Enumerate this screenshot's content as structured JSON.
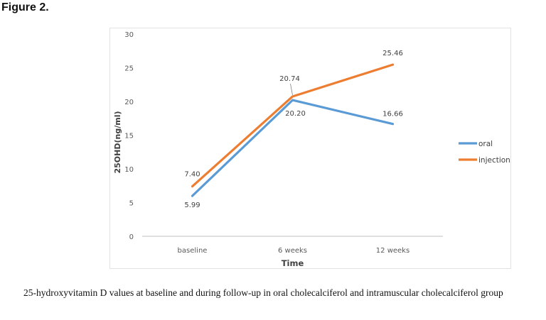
{
  "figure_label": "Figure 2.",
  "caption": "25-hydroxyvitamin D values at baseline and during follow-up in oral cholecalciferol and intramuscular cholecalciferol group",
  "chart_data": {
    "type": "line",
    "xlabel": "Time",
    "ylabel": "25OHD(ng/ml)",
    "categories": [
      "baseline",
      "6 weeks",
      "12 weeks"
    ],
    "ylim": [
      0,
      30
    ],
    "yticks": [
      0,
      5,
      10,
      15,
      20,
      25,
      30
    ],
    "grid": false,
    "legend_position": "right",
    "series": [
      {
        "name": "oral",
        "color": "#5b9bd5",
        "values": [
          5.99,
          20.2,
          16.66
        ],
        "labels": [
          "5.99",
          "20.20",
          "16.66"
        ]
      },
      {
        "name": "injection",
        "color": "#ed7d31",
        "values": [
          7.4,
          20.74,
          25.46
        ],
        "labels": [
          "7.40",
          "20.74",
          "25.46"
        ]
      }
    ]
  }
}
